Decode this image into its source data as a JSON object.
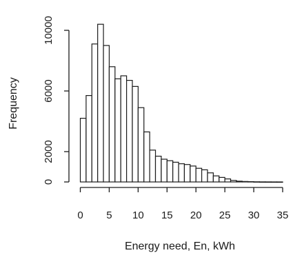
{
  "chart_data": {
    "type": "bar",
    "xlabel": "Energy need, En, kWh",
    "ylabel": "Frequency",
    "bin_width": 1,
    "bin_start": 0,
    "xlim": [
      0,
      35
    ],
    "ylim": [
      0,
      10500
    ],
    "x_ticks": [
      0,
      5,
      10,
      15,
      20,
      25,
      30,
      35
    ],
    "x_tick_labels": [
      "0",
      "5",
      "10",
      "15",
      "20",
      "25",
      "30",
      "35"
    ],
    "y_ticks": [
      0,
      2000,
      6000,
      10000
    ],
    "y_tick_labels": [
      "0",
      "2000",
      "6000",
      "10000"
    ],
    "values": [
      4200,
      5700,
      9100,
      10400,
      9000,
      7600,
      6800,
      7000,
      6700,
      6300,
      4900,
      3300,
      2100,
      1700,
      1500,
      1400,
      1300,
      1200,
      1150,
      1050,
      900,
      800,
      600,
      400,
      300,
      200,
      100,
      50,
      30,
      20,
      10,
      5,
      3,
      2,
      1
    ]
  }
}
